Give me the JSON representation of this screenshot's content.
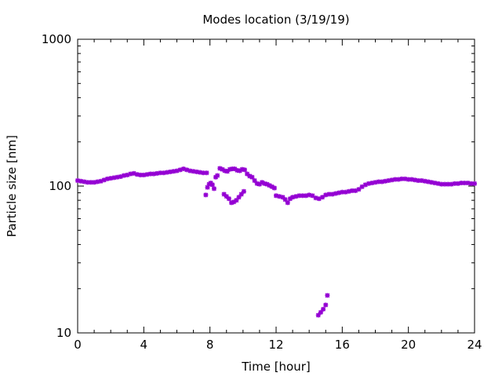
{
  "chart_data": {
    "type": "scatter",
    "title": "Modes location (3/19/19)",
    "xlabel": "Time [hour]",
    "ylabel": "Particle size [nm]",
    "xlim": [
      0,
      24
    ],
    "ylim": [
      10,
      1000
    ],
    "yscale": "log",
    "grid": false,
    "legend": "none",
    "xticks": [
      0,
      4,
      8,
      12,
      16,
      20,
      24
    ],
    "xtick_labels": [
      "0",
      "4",
      "8",
      "12",
      "16",
      "20",
      "24"
    ],
    "yticks": [
      10,
      100,
      1000
    ],
    "ytick_labels": [
      "10",
      "100",
      "1000"
    ],
    "marker_color": "#9400d3",
    "marker": "asterisk",
    "series": [
      {
        "x": [
          0.0,
          0.2,
          0.4,
          0.6,
          0.8,
          1.0,
          1.2,
          1.4,
          1.6,
          1.8,
          2.0,
          2.2,
          2.4,
          2.6,
          2.8,
          3.0,
          3.2,
          3.4,
          3.6,
          3.8,
          4.0,
          4.2,
          4.4,
          4.6,
          4.8,
          5.0,
          5.2,
          5.4,
          5.6,
          5.8,
          6.0,
          6.2,
          6.4,
          6.6,
          6.8,
          7.0,
          7.2,
          7.4,
          7.6,
          7.8,
          7.75,
          7.85,
          7.95,
          8.05,
          8.15,
          8.25,
          8.35,
          8.45,
          8.6,
          8.75,
          8.9,
          9.05,
          9.2,
          9.35,
          9.5,
          9.65,
          9.8,
          9.95,
          10.1,
          10.25,
          10.4,
          10.55,
          10.7,
          10.85,
          11.0,
          11.15,
          11.3,
          11.45,
          11.6,
          11.75,
          11.9,
          8.85,
          9.0,
          9.15,
          9.3,
          9.45,
          9.6,
          9.75,
          9.9,
          10.05,
          12.0,
          12.2,
          12.4,
          12.55,
          12.7,
          12.85,
          13.0,
          13.2,
          13.4,
          13.6,
          13.8,
          14.0,
          14.2,
          14.4,
          14.6,
          14.8,
          15.0,
          15.2,
          15.4,
          15.6,
          15.8,
          16.0,
          16.2,
          16.4,
          16.6,
          16.8,
          17.0,
          17.2,
          17.4,
          17.6,
          17.8,
          18.0,
          18.2,
          18.4,
          18.6,
          18.8,
          19.0,
          19.2,
          19.4,
          19.6,
          19.8,
          20.0,
          20.2,
          20.4,
          20.6,
          20.8,
          21.0,
          21.2,
          21.4,
          21.6,
          21.8,
          22.0,
          22.2,
          22.4,
          22.6,
          22.8,
          23.0,
          23.2,
          23.4,
          23.6,
          23.8,
          24.0,
          14.55,
          14.7,
          14.85,
          15.0,
          15.1
        ],
        "y": [
          109,
          108,
          107,
          106,
          106,
          106,
          107,
          108,
          110,
          112,
          113,
          114,
          115,
          116,
          118,
          119,
          121,
          122,
          120,
          119,
          119,
          120,
          121,
          121,
          122,
          123,
          123,
          124,
          125,
          126,
          127,
          129,
          131,
          129,
          127,
          126,
          125,
          124,
          123,
          123,
          87,
          98,
          103,
          105,
          102,
          96,
          115,
          118,
          132,
          130,
          127,
          126,
          130,
          131,
          131,
          128,
          127,
          130,
          129,
          121,
          117,
          115,
          109,
          104,
          103,
          106,
          104,
          103,
          101,
          99,
          97,
          88,
          85,
          82,
          77,
          78,
          80,
          84,
          88,
          92,
          86,
          85,
          84,
          81,
          77,
          82,
          84,
          85,
          86,
          86,
          86,
          87,
          86,
          83,
          82,
          84,
          87,
          88,
          88,
          89,
          90,
          91,
          91,
          92,
          93,
          93,
          95,
          99,
          102,
          104,
          105,
          106,
          107,
          107,
          108,
          109,
          110,
          111,
          111,
          112,
          112,
          111,
          111,
          110,
          109,
          109,
          108,
          107,
          106,
          105,
          104,
          103,
          103,
          103,
          103,
          104,
          104,
          105,
          105,
          105,
          104,
          104,
          13.2,
          13.8,
          14.5,
          15.5,
          18.0
        ]
      }
    ]
  }
}
